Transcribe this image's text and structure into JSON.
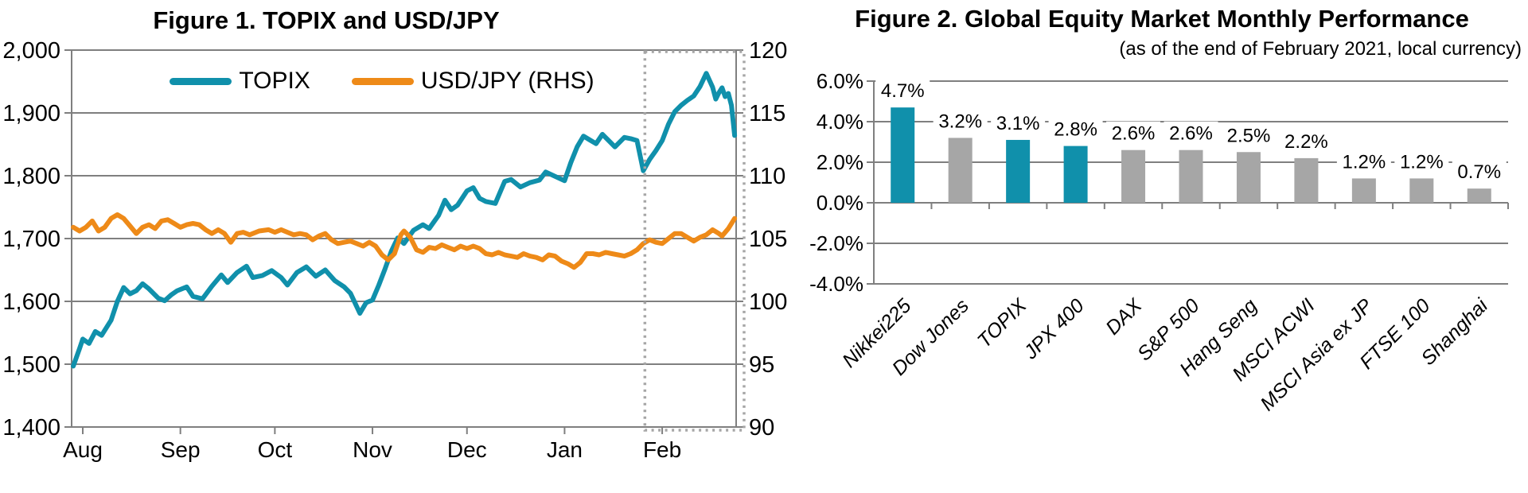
{
  "figure1": {
    "title": "Figure 1. TOPIX and USD/JPY",
    "legend": [
      {
        "label": "TOPIX",
        "color": "#1090ab"
      },
      {
        "label": "USD/JPY (RHS)",
        "color": "#ee8a18"
      }
    ]
  },
  "figure2": {
    "title": "Figure 2. Global Equity Market Monthly Performance",
    "subtitle": "(as of the end of February 2021, local currency)"
  },
  "chart_data": [
    {
      "type": "line",
      "title": "Figure 1. TOPIX and USD/JPY",
      "x_axis": {
        "unit": "trading days, Aug 2020 through late Feb 2021 (day 0 = Aug 1)",
        "month_ticks": [
          {
            "label": "Aug",
            "day": 0
          },
          {
            "label": "Sep",
            "day": 31
          },
          {
            "label": "Oct",
            "day": 61
          },
          {
            "label": "Nov",
            "day": 92
          },
          {
            "label": "Dec",
            "day": 122
          },
          {
            "label": "Jan",
            "day": 153
          },
          {
            "label": "Feb",
            "day": 184
          }
        ],
        "domain": [
          -3,
          210
        ]
      },
      "left_axis": {
        "series": "TOPIX",
        "range": [
          1400,
          2000
        ],
        "tick_step": 100,
        "tick_labels": [
          "2,000",
          "1,900",
          "1,800",
          "1,700",
          "1,600",
          "1,500",
          "1,400"
        ]
      },
      "right_axis": {
        "series": "USD/JPY",
        "range": [
          90,
          120
        ],
        "tick_step": 5,
        "tick_labels": [
          "120",
          "115",
          "110",
          "105",
          "100",
          "95",
          "90"
        ]
      },
      "grid": true,
      "legend_position": "top-center",
      "annotations": [
        {
          "type": "dotted-box",
          "meaning": "highlights February period",
          "day_from": 178.5,
          "day_to": 210,
          "color": "#a6a6a6"
        }
      ],
      "series": [
        {
          "name": "TOPIX",
          "axis": "left",
          "color": "#1090ab",
          "points": [
            [
              -3,
              1497
            ],
            [
              -1,
              1525
            ],
            [
              0,
              1540
            ],
            [
              2,
              1533
            ],
            [
              4,
              1552
            ],
            [
              6,
              1546
            ],
            [
              9,
              1570
            ],
            [
              11,
              1600
            ],
            [
              13,
              1622
            ],
            [
              15,
              1612
            ],
            [
              17,
              1617
            ],
            [
              19,
              1628
            ],
            [
              21,
              1620
            ],
            [
              24,
              1605
            ],
            [
              26,
              1601
            ],
            [
              28,
              1610
            ],
            [
              30,
              1617
            ],
            [
              33,
              1623
            ],
            [
              35,
              1608
            ],
            [
              38,
              1604
            ],
            [
              41,
              1624
            ],
            [
              44,
              1642
            ],
            [
              46,
              1630
            ],
            [
              49,
              1646
            ],
            [
              52,
              1656
            ],
            [
              54,
              1638
            ],
            [
              57,
              1641
            ],
            [
              60,
              1649
            ],
            [
              63,
              1638
            ],
            [
              65,
              1626
            ],
            [
              68,
              1646
            ],
            [
              71,
              1655
            ],
            [
              74,
              1640
            ],
            [
              77,
              1650
            ],
            [
              80,
              1633
            ],
            [
              83,
              1623
            ],
            [
              85,
              1613
            ],
            [
              88,
              1581
            ],
            [
              90,
              1598
            ],
            [
              92,
              1602
            ],
            [
              94,
              1626
            ],
            [
              96,
              1652
            ],
            [
              98,
              1680
            ],
            [
              100,
              1701
            ],
            [
              102,
              1692
            ],
            [
              105,
              1713
            ],
            [
              108,
              1722
            ],
            [
              110,
              1716
            ],
            [
              113,
              1737
            ],
            [
              115,
              1761
            ],
            [
              117,
              1746
            ],
            [
              119,
              1753
            ],
            [
              122,
              1776
            ],
            [
              124,
              1781
            ],
            [
              126,
              1764
            ],
            [
              128,
              1759
            ],
            [
              131,
              1756
            ],
            [
              134,
              1791
            ],
            [
              136,
              1794
            ],
            [
              139,
              1782
            ],
            [
              142,
              1789
            ],
            [
              145,
              1793
            ],
            [
              147,
              1806
            ],
            [
              150,
              1799
            ],
            [
              153,
              1792
            ],
            [
              155,
              1821
            ],
            [
              157,
              1846
            ],
            [
              159,
              1863
            ],
            [
              161,
              1857
            ],
            [
              163,
              1851
            ],
            [
              165,
              1866
            ],
            [
              167,
              1856
            ],
            [
              169,
              1846
            ],
            [
              172,
              1861
            ],
            [
              174,
              1859
            ],
            [
              176,
              1856
            ],
            [
              178,
              1808
            ],
            [
              180,
              1826
            ],
            [
              182,
              1840
            ],
            [
              184,
              1856
            ],
            [
              186,
              1882
            ],
            [
              188,
              1902
            ],
            [
              190,
              1912
            ],
            [
              192,
              1920
            ],
            [
              194,
              1927
            ],
            [
              196,
              1942
            ],
            [
              198,
              1963
            ],
            [
              200,
              1941
            ],
            [
              201,
              1922
            ],
            [
              202,
              1932
            ],
            [
              203,
              1940
            ],
            [
              204,
              1926
            ],
            [
              205,
              1931
            ],
            [
              206,
              1912
            ],
            [
              207,
              1864
            ]
          ]
        },
        {
          "name": "USD/JPY (RHS)",
          "axis": "right",
          "color": "#ee8a18",
          "points": [
            [
              -3,
              105.9
            ],
            [
              -1,
              105.6
            ],
            [
              1,
              105.9
            ],
            [
              3,
              106.4
            ],
            [
              5,
              105.6
            ],
            [
              7,
              105.9
            ],
            [
              9,
              106.6
            ],
            [
              11,
              106.9
            ],
            [
              13,
              106.6
            ],
            [
              15,
              106.0
            ],
            [
              17,
              105.4
            ],
            [
              19,
              105.9
            ],
            [
              21,
              106.1
            ],
            [
              23,
              105.8
            ],
            [
              25,
              106.4
            ],
            [
              27,
              106.5
            ],
            [
              29,
              106.2
            ],
            [
              31,
              105.9
            ],
            [
              33,
              106.1
            ],
            [
              35,
              106.2
            ],
            [
              37,
              106.1
            ],
            [
              39,
              105.7
            ],
            [
              41,
              105.4
            ],
            [
              43,
              105.7
            ],
            [
              45,
              105.4
            ],
            [
              47,
              104.7
            ],
            [
              49,
              105.4
            ],
            [
              51,
              105.5
            ],
            [
              53,
              105.3
            ],
            [
              56,
              105.6
            ],
            [
              59,
              105.7
            ],
            [
              61,
              105.5
            ],
            [
              63,
              105.7
            ],
            [
              65,
              105.5
            ],
            [
              67,
              105.3
            ],
            [
              69,
              105.4
            ],
            [
              71,
              105.3
            ],
            [
              73,
              104.9
            ],
            [
              75,
              105.2
            ],
            [
              77,
              105.4
            ],
            [
              79,
              104.9
            ],
            [
              81,
              104.6
            ],
            [
              83,
              104.7
            ],
            [
              85,
              104.8
            ],
            [
              87,
              104.6
            ],
            [
              89,
              104.4
            ],
            [
              91,
              104.7
            ],
            [
              93,
              104.4
            ],
            [
              95,
              103.7
            ],
            [
              97,
              103.3
            ],
            [
              99,
              103.8
            ],
            [
              101,
              105.3
            ],
            [
              102,
              105.6
            ],
            [
              104,
              105.1
            ],
            [
              106,
              104.1
            ],
            [
              108,
              103.9
            ],
            [
              110,
              104.3
            ],
            [
              112,
              104.2
            ],
            [
              114,
              104.5
            ],
            [
              116,
              104.3
            ],
            [
              118,
              104.1
            ],
            [
              120,
              104.4
            ],
            [
              122,
              104.2
            ],
            [
              124,
              104.4
            ],
            [
              126,
              104.2
            ],
            [
              128,
              103.8
            ],
            [
              130,
              103.7
            ],
            [
              132,
              103.9
            ],
            [
              134,
              103.7
            ],
            [
              136,
              103.6
            ],
            [
              138,
              103.5
            ],
            [
              140,
              103.8
            ],
            [
              142,
              103.6
            ],
            [
              144,
              103.5
            ],
            [
              146,
              103.3
            ],
            [
              148,
              103.7
            ],
            [
              150,
              103.6
            ],
            [
              152,
              103.2
            ],
            [
              154,
              103.0
            ],
            [
              156,
              102.7
            ],
            [
              158,
              103.1
            ],
            [
              160,
              103.8
            ],
            [
              162,
              103.8
            ],
            [
              164,
              103.7
            ],
            [
              166,
              103.9
            ],
            [
              168,
              103.8
            ],
            [
              170,
              103.7
            ],
            [
              172,
              103.6
            ],
            [
              174,
              103.8
            ],
            [
              176,
              104.1
            ],
            [
              178,
              104.6
            ],
            [
              180,
              104.9
            ],
            [
              182,
              104.7
            ],
            [
              184,
              104.6
            ],
            [
              186,
              105.0
            ],
            [
              188,
              105.4
            ],
            [
              190,
              105.4
            ],
            [
              192,
              105.1
            ],
            [
              194,
              104.8
            ],
            [
              196,
              105.1
            ],
            [
              198,
              105.3
            ],
            [
              200,
              105.7
            ],
            [
              202,
              105.4
            ],
            [
              203,
              105.2
            ],
            [
              205,
              105.8
            ],
            [
              207,
              106.6
            ]
          ]
        }
      ]
    },
    {
      "type": "bar",
      "title": "Figure 2. Global Equity Market Monthly Performance",
      "subtitle": "(as of the end of February 2021, local currency)",
      "categories": [
        "Nikkei225",
        "Dow Jones",
        "TOPIX",
        "JPX 400",
        "DAX",
        "S&P 500",
        "Hang Seng",
        "MSCI ACWI",
        "MSCI Asia ex JP",
        "FTSE 100",
        "Shanghai"
      ],
      "values": [
        4.7,
        3.2,
        3.1,
        2.8,
        2.6,
        2.6,
        2.5,
        2.2,
        1.2,
        1.2,
        0.7
      ],
      "data_labels": [
        "4.7%",
        "3.2%",
        "3.1%",
        "2.8%",
        "2.6%",
        "2.6%",
        "2.5%",
        "2.2%",
        "1.2%",
        "1.2%",
        "0.7%"
      ],
      "highlighted_categories": [
        "Nikkei225",
        "TOPIX",
        "JPX 400"
      ],
      "highlight_color": "#1090ab",
      "default_color": "#a6a6a6",
      "ylim": [
        -4,
        6
      ],
      "y_ticks": [
        {
          "label": "6.0%",
          "value": 6
        },
        {
          "label": "4.0%",
          "value": 4
        },
        {
          "label": "2.0%",
          "value": 2
        },
        {
          "label": "0.0%",
          "value": 0
        },
        {
          "label": "-2.0%",
          "value": -2
        },
        {
          "label": "-4.0%",
          "value": -4
        }
      ],
      "grid": true,
      "xlabel": "",
      "ylabel": ""
    }
  ]
}
